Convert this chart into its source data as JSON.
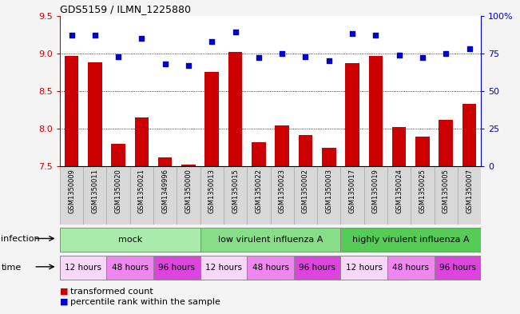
{
  "title": "GDS5159 / ILMN_1225880",
  "samples": [
    "GSM1350009",
    "GSM1350011",
    "GSM1350020",
    "GSM1350021",
    "GSM1349996",
    "GSM1350000",
    "GSM1350013",
    "GSM1350015",
    "GSM1350022",
    "GSM1350023",
    "GSM1350002",
    "GSM1350003",
    "GSM1350017",
    "GSM1350019",
    "GSM1350024",
    "GSM1350025",
    "GSM1350005",
    "GSM1350007"
  ],
  "bar_values": [
    8.97,
    8.88,
    7.8,
    8.15,
    7.62,
    7.52,
    8.75,
    9.02,
    7.82,
    8.04,
    7.92,
    7.75,
    8.87,
    8.97,
    8.02,
    7.9,
    8.12,
    8.33
  ],
  "dot_values": [
    87,
    87,
    73,
    85,
    68,
    67,
    83,
    89,
    72,
    75,
    73,
    70,
    88,
    87,
    74,
    72,
    75,
    78
  ],
  "ylim_left": [
    7.5,
    9.5
  ],
  "ylim_right": [
    0,
    100
  ],
  "yticks_left": [
    7.5,
    8.0,
    8.5,
    9.0,
    9.5
  ],
  "yticks_right": [
    0,
    25,
    50,
    75,
    100
  ],
  "ytick_labels_right": [
    "0",
    "25",
    "50",
    "75",
    "100%"
  ],
  "bar_color": "#cc0000",
  "dot_color": "#0000cc",
  "grid_color": "#000000",
  "infection_groups": [
    {
      "label": "mock",
      "start": 0,
      "end": 6,
      "color": "#aaeaaa"
    },
    {
      "label": "low virulent influenza A",
      "start": 6,
      "end": 12,
      "color": "#88dd88"
    },
    {
      "label": "highly virulent influenza A",
      "start": 12,
      "end": 18,
      "color": "#55cc55"
    }
  ],
  "time_groups": [
    {
      "label": "12 hours",
      "start": 0,
      "end": 2,
      "color": "#f8d8f8"
    },
    {
      "label": "48 hours",
      "start": 2,
      "end": 4,
      "color": "#ee88ee"
    },
    {
      "label": "96 hours",
      "start": 4,
      "end": 6,
      "color": "#dd44dd"
    },
    {
      "label": "12 hours",
      "start": 6,
      "end": 8,
      "color": "#f8d8f8"
    },
    {
      "label": "48 hours",
      "start": 8,
      "end": 10,
      "color": "#ee88ee"
    },
    {
      "label": "96 hours",
      "start": 10,
      "end": 12,
      "color": "#dd44dd"
    },
    {
      "label": "12 hours",
      "start": 12,
      "end": 14,
      "color": "#f8d8f8"
    },
    {
      "label": "48 hours",
      "start": 14,
      "end": 16,
      "color": "#ee88ee"
    },
    {
      "label": "96 hours",
      "start": 16,
      "end": 18,
      "color": "#dd44dd"
    }
  ],
  "legend_bar_label": "transformed count",
  "legend_dot_label": "percentile rank within the sample",
  "infection_label": "infection",
  "time_label": "time",
  "left_axis_color": "#cc0000",
  "right_axis_color": "#0000cc",
  "xtick_bg_color": "#d8d8d8",
  "fig_bg_color": "#f4f4f4"
}
